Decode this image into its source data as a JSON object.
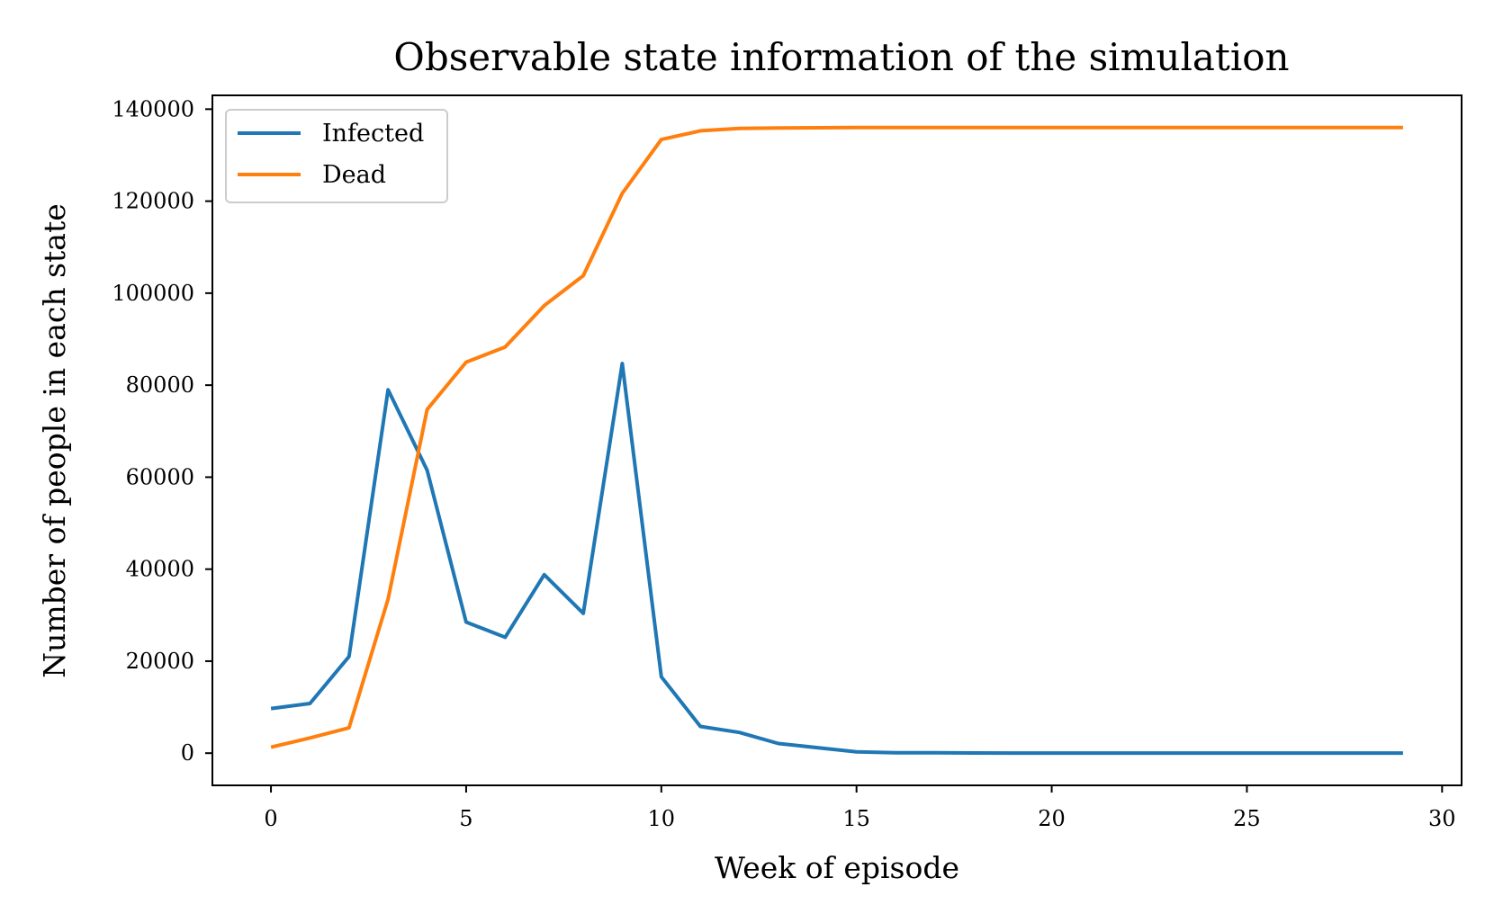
{
  "chart_data": {
    "type": "line",
    "title": "Observable state information of the simulation",
    "xlabel": "Week of episode",
    "ylabel": "Number of people in each state",
    "xlim": [
      -1.5,
      30.5
    ],
    "ylim": [
      -7000,
      143000
    ],
    "xticks": [
      0,
      5,
      10,
      15,
      20,
      25,
      30
    ],
    "yticks": [
      0,
      20000,
      40000,
      60000,
      80000,
      100000,
      120000,
      140000
    ],
    "grid": false,
    "legend_position": "top-left",
    "x": [
      0,
      1,
      2,
      3,
      4,
      5,
      6,
      7,
      8,
      9,
      10,
      11,
      12,
      13,
      14,
      15,
      16,
      17,
      18,
      19,
      20,
      21,
      22,
      23,
      24,
      25,
      26,
      27,
      28,
      29
    ],
    "series": [
      {
        "name": "Infected",
        "color": "#1f77b4",
        "values": [
          9700,
          10800,
          21000,
          79000,
          61500,
          28500,
          25200,
          38800,
          30400,
          84700,
          16600,
          5800,
          4500,
          2100,
          1200,
          300,
          100,
          80,
          50,
          30,
          20,
          20,
          20,
          20,
          20,
          20,
          20,
          20,
          20,
          20
        ]
      },
      {
        "name": "Dead",
        "color": "#ff7f0e",
        "values": [
          1300,
          3300,
          5500,
          33500,
          74700,
          85000,
          88300,
          97300,
          103800,
          121700,
          133400,
          135300,
          135800,
          135900,
          135950,
          136000,
          136000,
          136000,
          136000,
          136000,
          136000,
          136000,
          136000,
          136000,
          136000,
          136000,
          136000,
          136000,
          136000,
          136000
        ]
      }
    ]
  }
}
